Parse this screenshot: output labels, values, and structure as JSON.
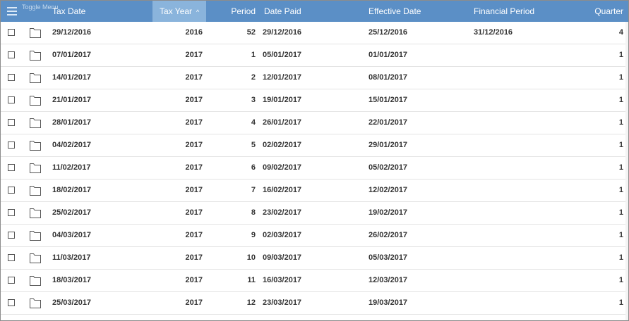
{
  "header": {
    "menu_tooltip": "Toggle Menu",
    "columns": {
      "tax_date": "Tax Date",
      "tax_year": "Tax Year",
      "period": "Period",
      "date_paid": "Date Paid",
      "effective_date": "Effective Date",
      "financial_period": "Financial Period",
      "quarter": "Quarter"
    },
    "sort_indicator": "^"
  },
  "rows": [
    {
      "tax_date": "29/12/2016",
      "tax_year": "2016",
      "period": "52",
      "date_paid": "29/12/2016",
      "effective_date": "25/12/2016",
      "financial_period": "31/12/2016",
      "quarter": "4"
    },
    {
      "tax_date": "07/01/2017",
      "tax_year": "2017",
      "period": "1",
      "date_paid": "05/01/2017",
      "effective_date": "01/01/2017",
      "financial_period": "",
      "quarter": "1"
    },
    {
      "tax_date": "14/01/2017",
      "tax_year": "2017",
      "period": "2",
      "date_paid": "12/01/2017",
      "effective_date": "08/01/2017",
      "financial_period": "",
      "quarter": "1"
    },
    {
      "tax_date": "21/01/2017",
      "tax_year": "2017",
      "period": "3",
      "date_paid": "19/01/2017",
      "effective_date": "15/01/2017",
      "financial_period": "",
      "quarter": "1"
    },
    {
      "tax_date": "28/01/2017",
      "tax_year": "2017",
      "period": "4",
      "date_paid": "26/01/2017",
      "effective_date": "22/01/2017",
      "financial_period": "",
      "quarter": "1"
    },
    {
      "tax_date": "04/02/2017",
      "tax_year": "2017",
      "period": "5",
      "date_paid": "02/02/2017",
      "effective_date": "29/01/2017",
      "financial_period": "",
      "quarter": "1"
    },
    {
      "tax_date": "11/02/2017",
      "tax_year": "2017",
      "period": "6",
      "date_paid": "09/02/2017",
      "effective_date": "05/02/2017",
      "financial_period": "",
      "quarter": "1"
    },
    {
      "tax_date": "18/02/2017",
      "tax_year": "2017",
      "period": "7",
      "date_paid": "16/02/2017",
      "effective_date": "12/02/2017",
      "financial_period": "",
      "quarter": "1"
    },
    {
      "tax_date": "25/02/2017",
      "tax_year": "2017",
      "period": "8",
      "date_paid": "23/02/2017",
      "effective_date": "19/02/2017",
      "financial_period": "",
      "quarter": "1"
    },
    {
      "tax_date": "04/03/2017",
      "tax_year": "2017",
      "period": "9",
      "date_paid": "02/03/2017",
      "effective_date": "26/02/2017",
      "financial_period": "",
      "quarter": "1"
    },
    {
      "tax_date": "11/03/2017",
      "tax_year": "2017",
      "period": "10",
      "date_paid": "09/03/2017",
      "effective_date": "05/03/2017",
      "financial_period": "",
      "quarter": "1"
    },
    {
      "tax_date": "18/03/2017",
      "tax_year": "2017",
      "period": "11",
      "date_paid": "16/03/2017",
      "effective_date": "12/03/2017",
      "financial_period": "",
      "quarter": "1"
    },
    {
      "tax_date": "25/03/2017",
      "tax_year": "2017",
      "period": "12",
      "date_paid": "23/03/2017",
      "effective_date": "19/03/2017",
      "financial_period": "",
      "quarter": "1"
    }
  ],
  "icons": {
    "menu": "hamburger-menu-icon",
    "row_checkbox": "checkbox-icon",
    "row_open": "folder-icon",
    "sort": "sort-ascending-icon"
  },
  "colors": {
    "header_bg": "#5b8fc6",
    "sorted_column_bg": "#8ab4dc",
    "header_text": "#ffffff",
    "row_text": "#333333",
    "row_border": "#e3e3e3"
  }
}
